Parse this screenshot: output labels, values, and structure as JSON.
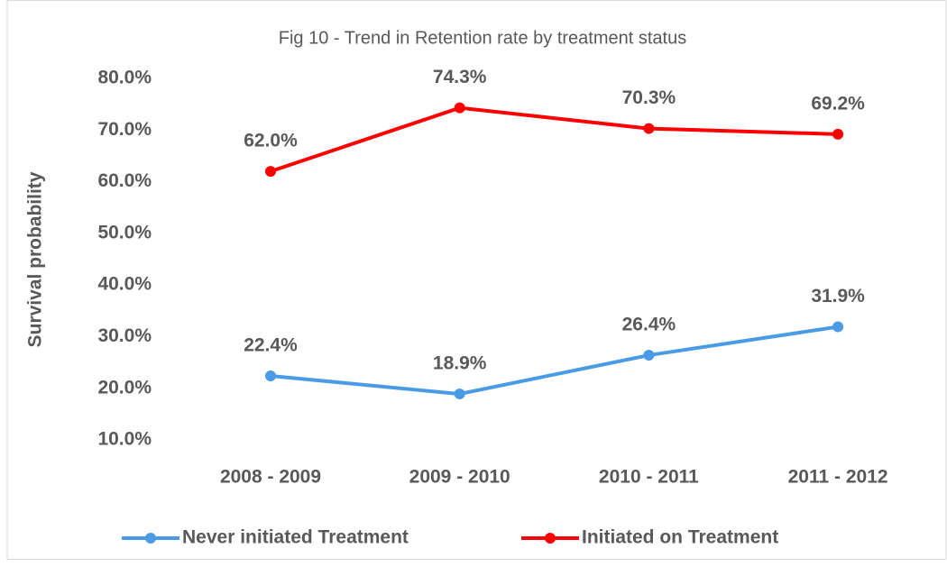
{
  "chart_data": {
    "type": "line",
    "title": "Fig 10 - Trend in Retention rate by treatment status",
    "y_label": "Survival probability",
    "categories": [
      "2008 - 2009",
      "2009 - 2010",
      "2010 - 2011",
      "2011 - 2012"
    ],
    "series": [
      {
        "name": "Never initiated Treatment",
        "color": "#4a9be6",
        "values": [
          22.4,
          18.9,
          26.4,
          31.9
        ],
        "value_labels": [
          "22.4%",
          "18.9%",
          "26.4%",
          "31.9%"
        ]
      },
      {
        "name": "Initiated on Treatment",
        "color": "#ff0000",
        "values": [
          62.0,
          74.3,
          70.3,
          69.2
        ],
        "value_labels": [
          "62.0%",
          "74.3%",
          "70.3%",
          "69.2%"
        ]
      }
    ],
    "ylim": [
      10,
      80
    ],
    "yticks": [
      {
        "value": 10,
        "label": "10.0%"
      },
      {
        "value": 20,
        "label": "20.0%"
      },
      {
        "value": 30,
        "label": "30.0%"
      },
      {
        "value": 40,
        "label": "40.0%"
      },
      {
        "value": 50,
        "label": "50.0%"
      },
      {
        "value": 60,
        "label": "60.0%"
      },
      {
        "value": 70,
        "label": "70.0%"
      },
      {
        "value": 80,
        "label": "80.0%"
      }
    ],
    "grid": false,
    "legend": "bottom"
  }
}
